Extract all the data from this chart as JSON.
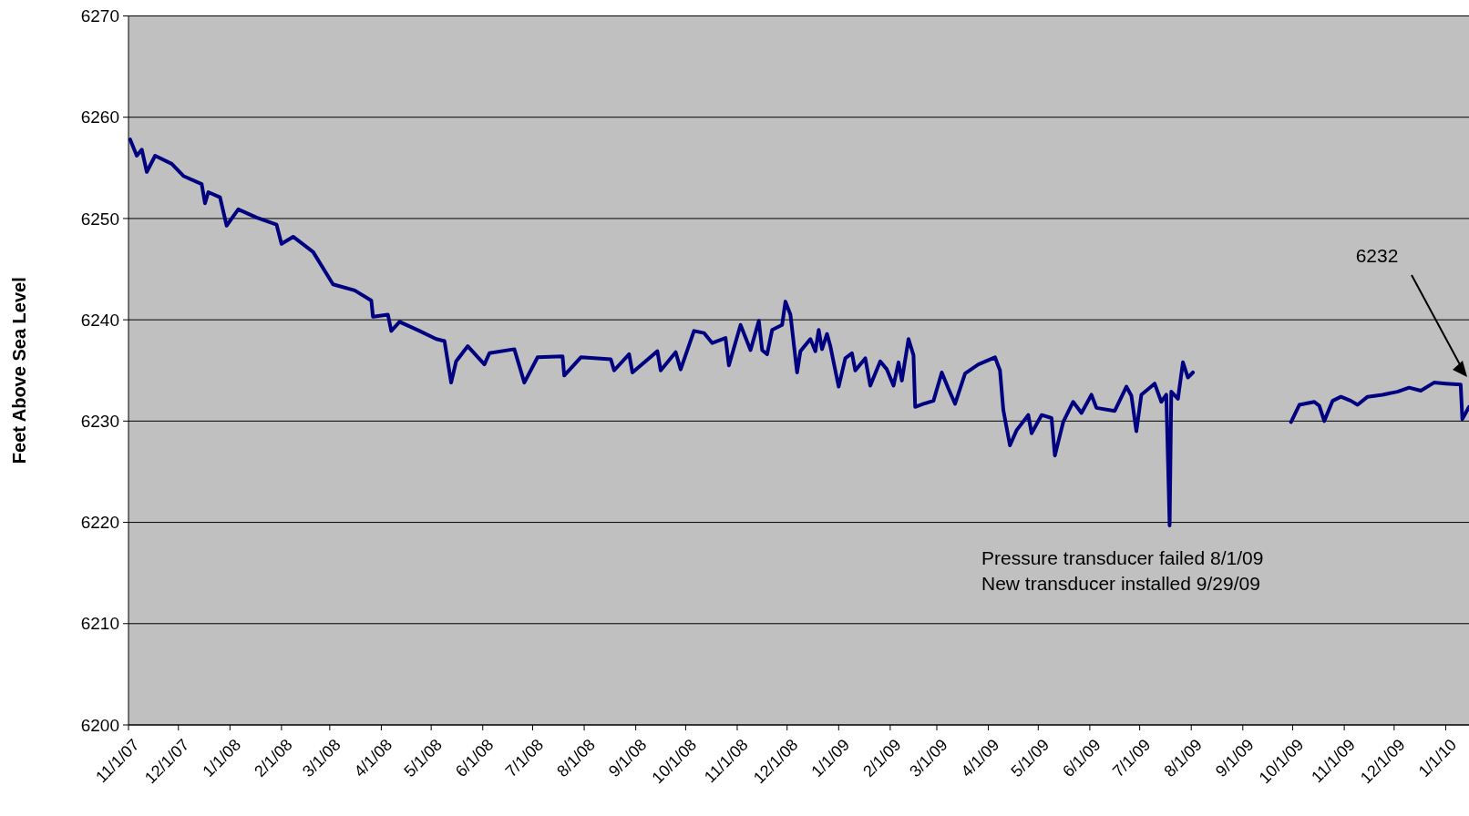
{
  "chart_data": {
    "type": "line",
    "ylabel": "Feet Above Sea Level",
    "xlim": [
      "2007-11-01",
      "2010-01-15"
    ],
    "xticks": [
      {
        "value": "2007-11-01",
        "label": "11/1/07"
      },
      {
        "value": "2007-12-01",
        "label": "12/1/07"
      },
      {
        "value": "2008-01-01",
        "label": "1/1/08"
      },
      {
        "value": "2008-02-01",
        "label": "2/1/08"
      },
      {
        "value": "2008-03-01",
        "label": "3/1/08"
      },
      {
        "value": "2008-04-01",
        "label": "4/1/08"
      },
      {
        "value": "2008-05-01",
        "label": "5/1/08"
      },
      {
        "value": "2008-06-01",
        "label": "6/1/08"
      },
      {
        "value": "2008-07-01",
        "label": "7/1/08"
      },
      {
        "value": "2008-08-01",
        "label": "8/1/08"
      },
      {
        "value": "2008-09-01",
        "label": "9/1/08"
      },
      {
        "value": "2008-10-01",
        "label": "10/1/08"
      },
      {
        "value": "2008-11-01",
        "label": "11/1/08"
      },
      {
        "value": "2008-12-01",
        "label": "12/1/08"
      },
      {
        "value": "2009-01-01",
        "label": "1/1/09"
      },
      {
        "value": "2009-02-01",
        "label": "2/1/09"
      },
      {
        "value": "2009-03-01",
        "label": "3/1/09"
      },
      {
        "value": "2009-04-01",
        "label": "4/1/09"
      },
      {
        "value": "2009-05-01",
        "label": "5/1/09"
      },
      {
        "value": "2009-06-01",
        "label": "6/1/09"
      },
      {
        "value": "2009-07-01",
        "label": "7/1/09"
      },
      {
        "value": "2009-08-01",
        "label": "8/1/09"
      },
      {
        "value": "2009-09-01",
        "label": "9/1/09"
      },
      {
        "value": "2009-10-01",
        "label": "10/1/09"
      },
      {
        "value": "2009-11-01",
        "label": "11/1/09"
      },
      {
        "value": "2009-12-01",
        "label": "12/1/09"
      },
      {
        "value": "2010-01-01",
        "label": "1/1/10"
      }
    ],
    "ylim": [
      6200,
      6270
    ],
    "yticks": [
      6200,
      6210,
      6220,
      6230,
      6240,
      6250,
      6260,
      6270
    ],
    "grid": "y",
    "marker": "none",
    "line_style": "solid",
    "annotations": [
      "6232",
      "Pressure transducer failed 8/1/09",
      "New transducer installed 9/29/09"
    ],
    "series": [
      {
        "color": "#000080",
        "x": [
          "2007-11-02",
          "2007-11-06",
          "2007-11-09",
          "2007-11-12",
          "2007-11-17",
          "2007-11-27",
          "2007-12-04",
          "2007-12-15",
          "2007-12-17",
          "2007-12-19",
          "2007-12-26",
          "2007-12-30",
          "2008-01-06",
          "2008-01-17",
          "2008-01-29",
          "2008-02-01",
          "2008-02-08",
          "2008-02-20",
          "2008-03-03",
          "2008-03-16",
          "2008-03-26",
          "2008-03-27",
          "2008-04-05",
          "2008-04-07",
          "2008-04-12",
          "2008-04-24",
          "2008-05-04",
          "2008-05-09",
          "2008-05-13",
          "2008-05-16",
          "2008-05-23",
          "2008-06-02",
          "2008-06-05",
          "2008-06-20",
          "2008-06-26",
          "2008-07-04",
          "2008-07-19",
          "2008-07-20",
          "2008-07-30",
          "2008-08-17",
          "2008-08-19",
          "2008-08-28",
          "2008-08-30",
          "2008-09-14",
          "2008-09-16",
          "2008-09-25",
          "2008-09-28",
          "2008-10-06",
          "2008-10-12",
          "2008-10-17",
          "2008-10-25",
          "2008-10-27",
          "2008-11-03",
          "2008-11-09",
          "2008-11-14",
          "2008-11-16",
          "2008-11-19",
          "2008-11-22",
          "2008-11-28",
          "2008-11-30",
          "2008-12-03",
          "2008-12-07",
          "2008-12-09",
          "2008-12-15",
          "2008-12-18",
          "2008-12-20",
          "2008-12-22",
          "2008-12-25",
          "2008-12-27",
          "2009-01-01",
          "2009-01-05",
          "2009-01-09",
          "2009-01-11",
          "2009-01-17",
          "2009-01-20",
          "2009-01-26",
          "2009-01-30",
          "2009-02-03",
          "2009-02-06",
          "2009-02-08",
          "2009-02-12",
          "2009-02-15",
          "2009-02-16",
          "2009-02-21",
          "2009-02-27",
          "2009-03-04",
          "2009-03-08",
          "2009-03-12",
          "2009-03-18",
          "2009-03-26",
          "2009-04-05",
          "2009-04-08",
          "2009-04-10",
          "2009-04-14",
          "2009-04-18",
          "2009-04-25",
          "2009-04-27",
          "2009-05-03",
          "2009-05-09",
          "2009-05-11",
          "2009-05-16",
          "2009-05-22",
          "2009-05-27",
          "2009-06-02",
          "2009-06-05",
          "2009-06-16",
          "2009-06-23",
          "2009-06-26",
          "2009-06-29",
          "2009-07-02",
          "2009-07-10",
          "2009-07-14",
          "2009-07-17",
          "2009-07-19",
          "2009-07-20",
          "2009-07-24",
          "2009-07-27",
          "2009-07-30",
          "2009-08-02",
          "2009-09-01",
          "2009-09-30",
          "2009-10-05",
          "2009-10-14",
          "2009-10-17",
          "2009-10-20",
          "2009-10-25",
          "2009-10-30",
          "2009-11-05",
          "2009-11-09",
          "2009-11-15",
          "2009-11-24",
          "2009-12-03",
          "2009-12-10",
          "2009-12-17",
          "2009-12-25",
          "2010-01-01",
          "2010-01-10",
          "2010-01-11",
          "2010-01-15"
        ],
        "values": [
          6257.8,
          6256.2,
          6256.8,
          6254.6,
          6256.2,
          6255.4,
          6254.2,
          6253.4,
          6251.5,
          6252.6,
          6252.1,
          6249.3,
          6250.9,
          6250.1,
          6249.4,
          6247.5,
          6248.2,
          6246.7,
          6243.5,
          6242.9,
          6241.9,
          6240.3,
          6240.5,
          6238.9,
          6239.8,
          6238.9,
          6238.1,
          6237.9,
          6233.8,
          6235.9,
          6237.4,
          6235.6,
          6236.7,
          6237.1,
          6233.8,
          6236.3,
          6236.4,
          6234.5,
          6236.3,
          6236.1,
          6235,
          6236.6,
          6234.8,
          6236.9,
          6235,
          6236.8,
          6235.1,
          6238.9,
          6238.7,
          6237.7,
          6238.2,
          6235.5,
          6239.5,
          6237,
          6239.9,
          6237,
          6236.6,
          6239,
          6239.5,
          6241.8,
          6240.5,
          6234.8,
          6236.9,
          6238.1,
          6236.9,
          6239,
          6237.1,
          6238.6,
          6237.4,
          6233.4,
          6236.2,
          6236.7,
          6235,
          6236.2,
          6233.5,
          6235.9,
          6235.1,
          6233.5,
          6235.8,
          6234,
          6238.1,
          6236.5,
          6231.4,
          6231.7,
          6232,
          6234.8,
          6233.2,
          6231.7,
          6234.7,
          6235.6,
          6236.3,
          6235,
          6231.1,
          6227.6,
          6229.1,
          6230.6,
          6228.8,
          6230.6,
          6230.3,
          6226.6,
          6229.9,
          6231.9,
          6230.8,
          6232.6,
          6231.3,
          6231,
          6233.4,
          6232.5,
          6229,
          6232.6,
          6233.7,
          6231.9,
          6232.6,
          6219.7,
          6232.9,
          6232.2,
          6235.8,
          6234.3,
          6234.8,
          null,
          6229.9,
          6231.6,
          6231.9,
          6231.5,
          6230,
          6232,
          6232.4,
          6232,
          6231.6,
          6232.4,
          6232.6,
          6232.9,
          6233.3,
          6233,
          6233.8,
          6233.7,
          6233.6,
          6230.2,
          6231.4
        ]
      }
    ]
  }
}
